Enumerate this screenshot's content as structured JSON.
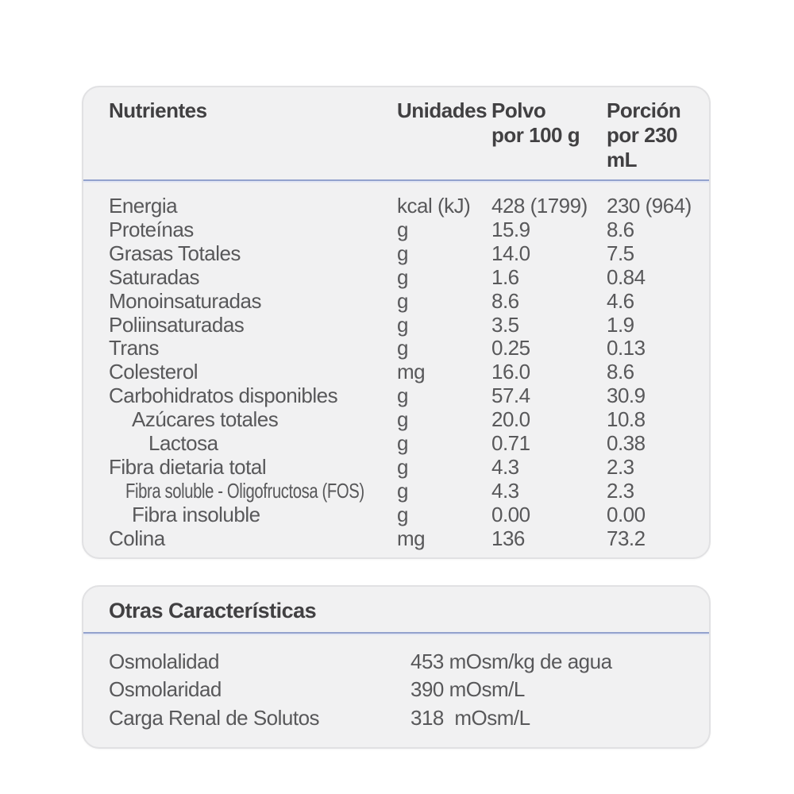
{
  "colors": {
    "card_background": "#f1f1f2",
    "card_border": "#e1e1e3",
    "divider_blue": "#93a2cd",
    "header_text": "#414042",
    "body_text": "#58585a"
  },
  "nutrition_table": {
    "headers": {
      "nutrient": "Nutrientes",
      "unit": "Unidades",
      "polvo_line1": "Polvo",
      "polvo_line2": "por 100 g",
      "porcion_line1": "Porción",
      "porcion_line2": "por 230 mL"
    },
    "rows": [
      {
        "label": "Energia",
        "unit": "kcal (kJ)",
        "per100g": "428 (1799)",
        "per230ml": "230 (964)",
        "indent": 0
      },
      {
        "label": "Proteínas",
        "unit": "g",
        "per100g": "15.9",
        "per230ml": "8.6",
        "indent": 0
      },
      {
        "label": "Grasas Totales",
        "unit": "g",
        "per100g": "14.0",
        "per230ml": "7.5",
        "indent": 0
      },
      {
        "label": "Saturadas",
        "unit": "g",
        "per100g": "1.6",
        "per230ml": "0.84",
        "indent": 0
      },
      {
        "label": "Monoinsaturadas",
        "unit": "g",
        "per100g": "8.6",
        "per230ml": "4.6",
        "indent": 0
      },
      {
        "label": "Poliinsaturadas",
        "unit": "g",
        "per100g": "3.5",
        "per230ml": "1.9",
        "indent": 0
      },
      {
        "label": "Trans",
        "unit": "g",
        "per100g": "0.25",
        "per230ml": "0.13",
        "indent": 0
      },
      {
        "label": "Colesterol",
        "unit": "mg",
        "per100g": "16.0",
        "per230ml": "8.6",
        "indent": 0
      },
      {
        "label": "Carbohidratos disponibles",
        "unit": "g",
        "per100g": "57.4",
        "per230ml": "30.9",
        "indent": 0
      },
      {
        "label": "Azúcares totales",
        "unit": "g",
        "per100g": "20.0",
        "per230ml": "10.8",
        "indent": 1
      },
      {
        "label": "Lactosa",
        "unit": "g",
        "per100g": "0.71",
        "per230ml": "0.38",
        "indent": 2
      },
      {
        "label": "Fibra dietaria total",
        "unit": "g",
        "per100g": "4.3",
        "per230ml": "2.3",
        "indent": 0
      },
      {
        "label": "Fibra soluble - Oligofructosa (FOS)",
        "unit": "g",
        "per100g": "4.3",
        "per230ml": "2.3",
        "indent": 1
      },
      {
        "label": "Fibra insoluble",
        "unit": "g",
        "per100g": "0.00",
        "per230ml": "0.00",
        "indent": 1
      },
      {
        "label": "Colina",
        "unit": "mg",
        "per100g": "136",
        "per230ml": "73.2",
        "indent": 0
      }
    ]
  },
  "other_characteristics": {
    "title": "Otras Características",
    "rows": [
      {
        "label": "Osmolalidad",
        "value": "453 mOsm/kg de agua"
      },
      {
        "label": "Osmolaridad",
        "value": "390 mOsm/L"
      },
      {
        "label": "Carga Renal de Solutos",
        "value": "318  mOsm/L"
      }
    ]
  }
}
